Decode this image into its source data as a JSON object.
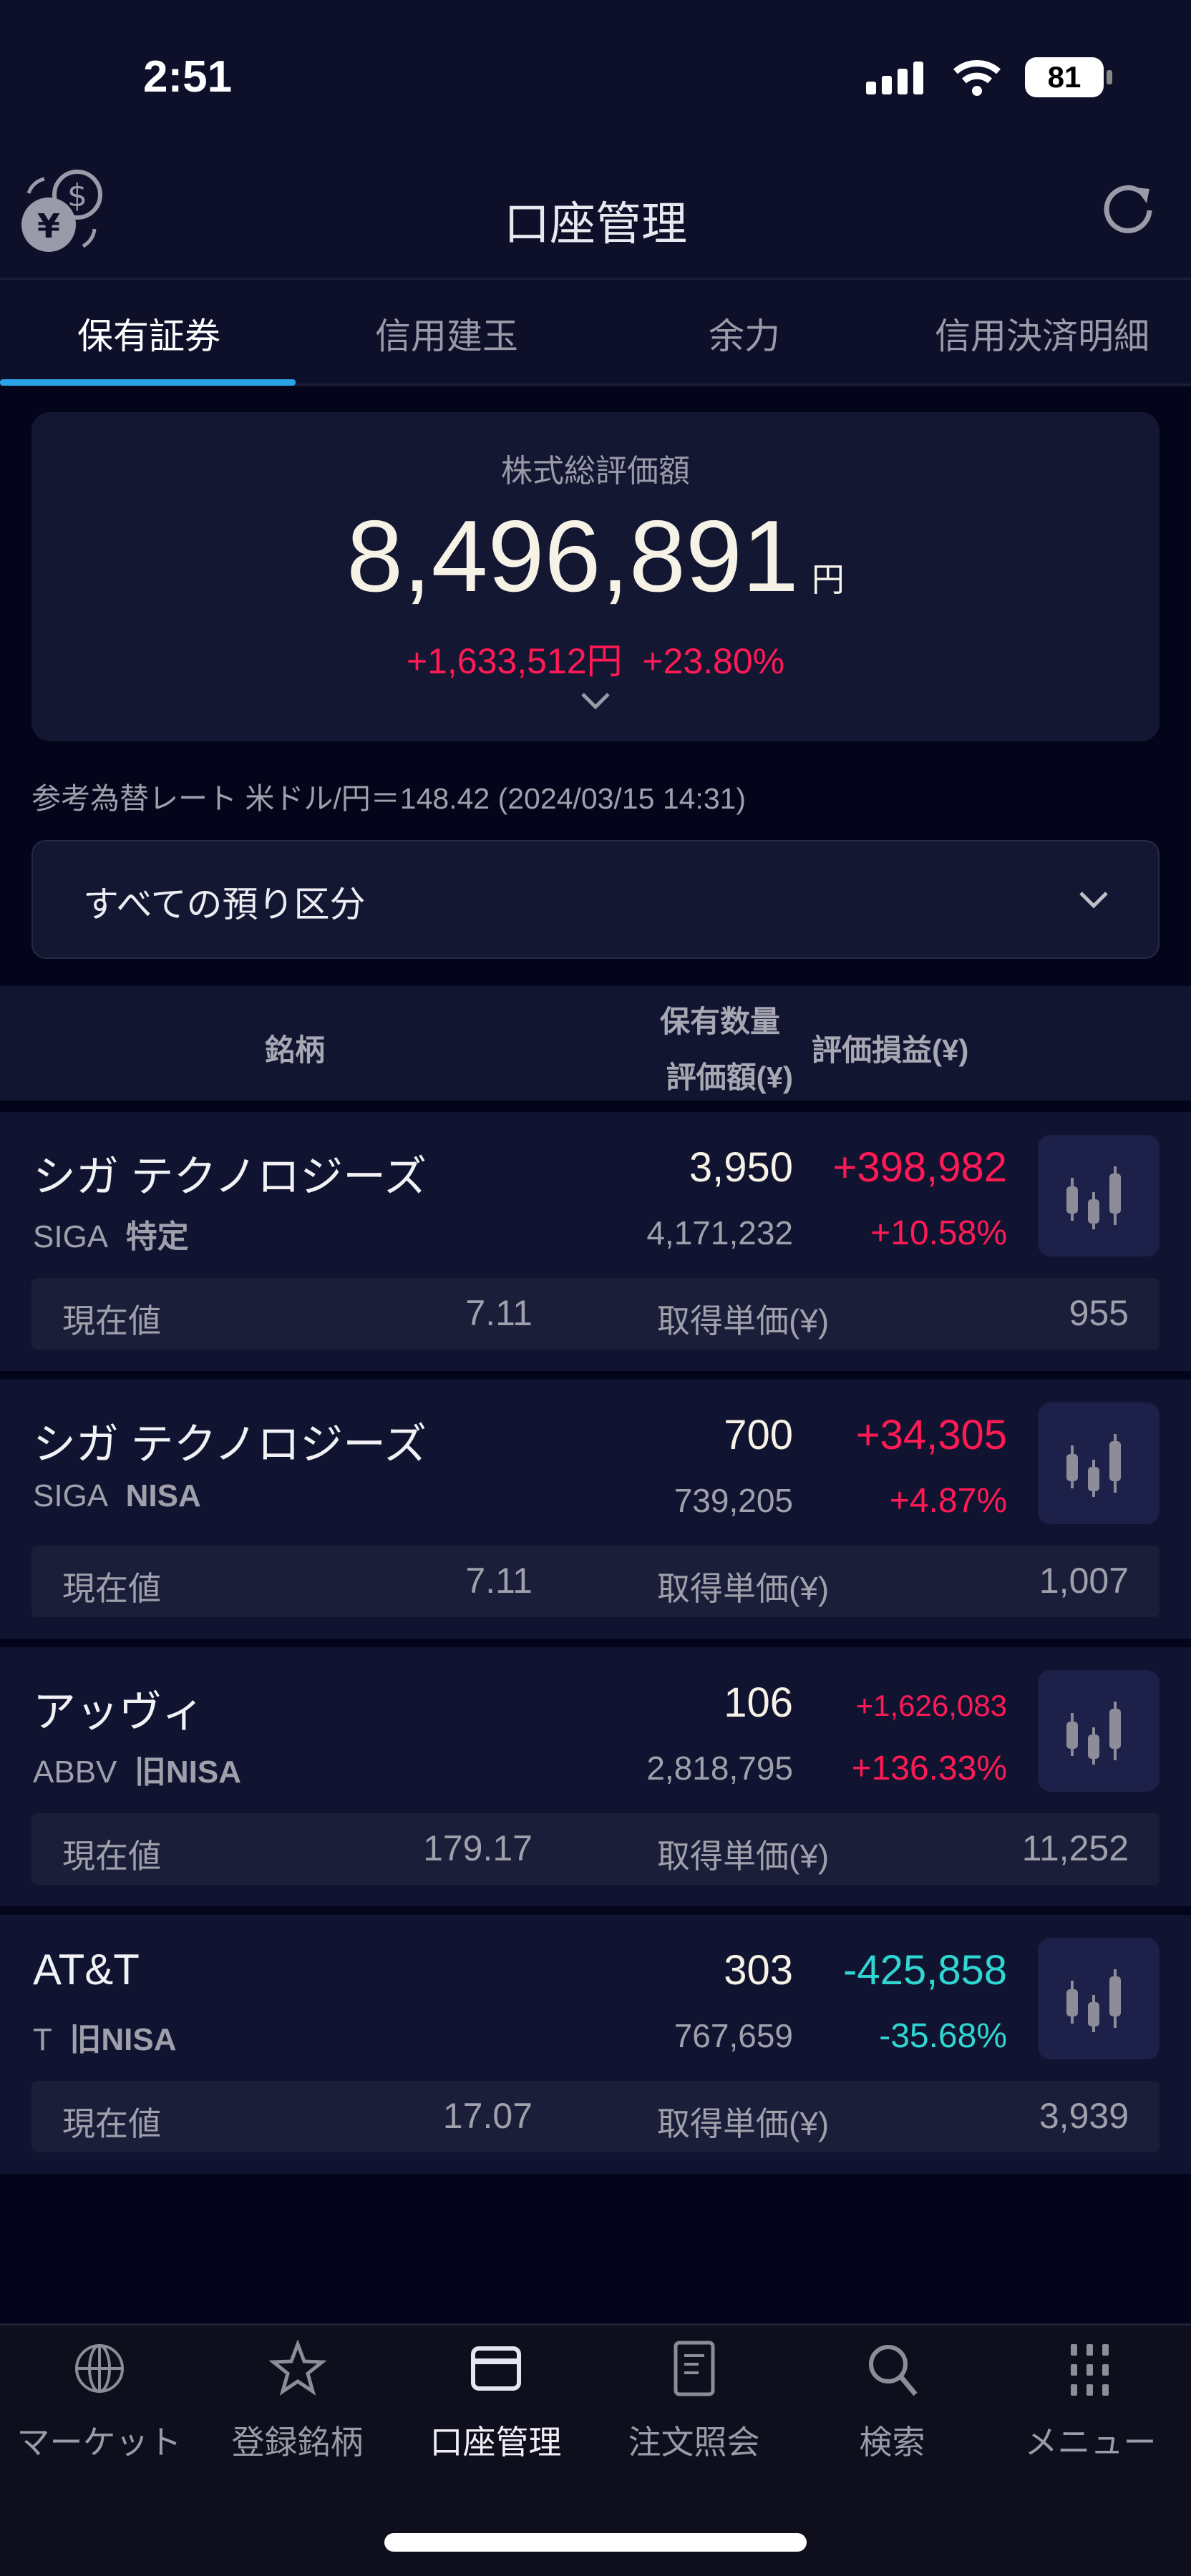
{
  "status_bar": {
    "time": "2:51",
    "battery": "81"
  },
  "header": {
    "title": "口座管理",
    "left_icon": "currency-exchange-icon",
    "right_icon": "refresh-icon"
  },
  "tabs": [
    {
      "label": "保有証券",
      "active": true
    },
    {
      "label": "信用建玉"
    },
    {
      "label": "余力"
    },
    {
      "label": "信用決済明細"
    }
  ],
  "summary": {
    "label": "株式総評価額",
    "total": "8,496,891",
    "unit": "円",
    "pl": "+1,633,512",
    "pl_unit": "円",
    "pl_pct": "+23.80%"
  },
  "rate_text": "参考為替レート 米ドル/円＝148.42 (2024/03/15 14:31)",
  "filter": {
    "selected": "すべての預り区分"
  },
  "table_header": {
    "name": "銘柄",
    "qty": "保有数量",
    "value": "評価額(¥)",
    "pl": "評価損益(¥)"
  },
  "colors": {
    "positive": "#ff1a55",
    "negative": "#2fd6d2",
    "accent": "#2ba3e8",
    "background": "#04051a"
  },
  "holdings": [
    {
      "name": "シガ テクノロジーズ",
      "code": "SIGA",
      "account": "特定",
      "qty": "3,950",
      "value": "4,171,232",
      "pl": "+398,982",
      "pct": "+10.58%",
      "trend": "positive",
      "price_label": "現在値",
      "price": "7.11",
      "price_trend": "positive",
      "cost_label": "取得単価(¥)",
      "cost": "955"
    },
    {
      "name": "シガ テクノロジーズ",
      "code": "SIGA",
      "account": "NISA",
      "qty": "700",
      "value": "739,205",
      "pl": "+34,305",
      "pct": "+4.87%",
      "trend": "positive",
      "price_label": "現在値",
      "price": "7.11",
      "price_trend": "positive",
      "cost_label": "取得単価(¥)",
      "cost": "1,007"
    },
    {
      "name": "アッヴィ",
      "code": "ABBV",
      "account": "旧NISA",
      "qty": "106",
      "value": "2,818,795",
      "pl": "+1,626,083",
      "pct": "+136.33%",
      "trend": "positive",
      "price_label": "現在値",
      "price": "179.17",
      "price_trend": "negative",
      "cost_label": "取得単価(¥)",
      "cost": "11,252"
    },
    {
      "name": "AT&T",
      "code": "T",
      "account": "旧NISA",
      "qty": "303",
      "value": "767,659",
      "pl": "-425,858",
      "pct": "-35.68%",
      "trend": "negative",
      "price_label": "現在値",
      "price": "17.07",
      "price_trend": "positive",
      "cost_label": "取得単価(¥)",
      "cost": "3,939"
    }
  ],
  "bottom_nav": [
    {
      "label": "マーケット",
      "icon": "globe-icon"
    },
    {
      "label": "登録銘柄",
      "icon": "star-icon"
    },
    {
      "label": "口座管理",
      "icon": "card-icon",
      "active": true
    },
    {
      "label": "注文照会",
      "icon": "document-icon"
    },
    {
      "label": "検索",
      "icon": "search-icon"
    },
    {
      "label": "メニュー",
      "icon": "grid-icon"
    }
  ]
}
